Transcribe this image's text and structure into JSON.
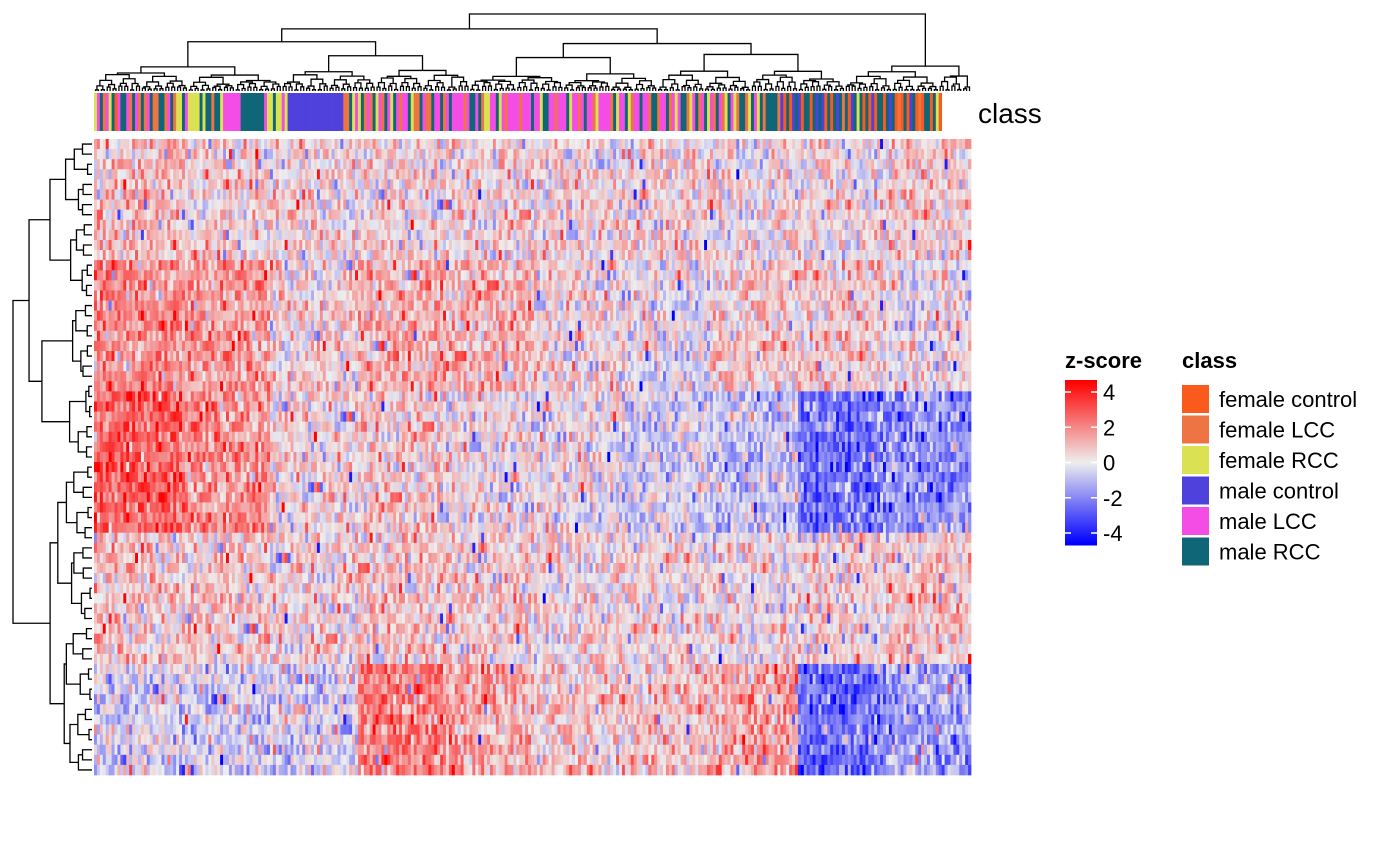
{
  "chart_data": {
    "type": "heatmap",
    "n_rows": 63,
    "n_cols": 299,
    "annotation_label": "class",
    "row_dendrogram": true,
    "column_dendrogram": true,
    "column_annotation": [
      "female RCC",
      "male LCC",
      "male RCC",
      "female LCC",
      "male LCC",
      "female RCC",
      "male RCC",
      "female control",
      "male LCC",
      "male RCC",
      "male RCC",
      "male LCC",
      "female LCC",
      "male RCC",
      "male LCC",
      "female LCC",
      "male RCC",
      "female LCC",
      "male LCC",
      "male RCC",
      "female LCC",
      "female LCC",
      "male RCC",
      "male RCC",
      "female LCC",
      "male LCC",
      "male RCC",
      "female LCC",
      "female RCC",
      "female RCC",
      "male RCC",
      "male LCC",
      "female RCC",
      "female RCC",
      "female RCC",
      "female RCC",
      "male RCC",
      "female RCC",
      "male RCC",
      "male RCC",
      "female LCC",
      "male RCC",
      "male RCC",
      "female RCC",
      "male LCC",
      "male LCC",
      "male LCC",
      "male LCC",
      "male LCC",
      "male LCC",
      "male RCC",
      "male RCC",
      "male RCC",
      "male RCC",
      "male RCC",
      "male RCC",
      "male RCC",
      "male RCC",
      "male LCC",
      "female RCC",
      "female RCC",
      "male RCC",
      "female RCC",
      "female RCC",
      "male LCC",
      "female RCC",
      "male control",
      "male control",
      "male control",
      "male control",
      "male control",
      "male control",
      "male control",
      "male control",
      "male control",
      "male control",
      "male control",
      "male control",
      "male control",
      "male control",
      "male control",
      "male control",
      "male control",
      "male control",
      "male control",
      "female LCC",
      "female LCC",
      "male RCC",
      "female RCC",
      "male LCC",
      "female RCC",
      "male RCC",
      "female LCC",
      "male LCC",
      "female LCC",
      "male RCC",
      "female RCC",
      "male LCC",
      "female LCC",
      "male RCC",
      "male LCC",
      "female RCC",
      "male RCC",
      "male LCC",
      "female LCC",
      "male LCC",
      "male LCC",
      "male RCC",
      "female RCC",
      "female LCC",
      "female LCC",
      "male RCC",
      "male LCC",
      "female LCC",
      "female LCC",
      "male RCC",
      "male LCC",
      "male LCC",
      "male RCC",
      "female LCC",
      "male LCC",
      "male RCC",
      "male LCC",
      "male LCC",
      "male LCC",
      "male LCC",
      "female LCC",
      "male LCC",
      "male RCC",
      "male RCC",
      "male LCC",
      "male RCC",
      "female LCC",
      "female RCC",
      "female RCC",
      "male LCC",
      "male LCC",
      "male RCC",
      "female RCC",
      "male LCC",
      "female LCC",
      "male LCC",
      "male LCC",
      "male LCC",
      "male LCC",
      "female LCC",
      "male LCC",
      "male LCC",
      "male LCC",
      "male RCC",
      "male LCC",
      "male LCC",
      "female RCC",
      "male RCC",
      "male RCC",
      "male LCC",
      "male LCC",
      "female LCC",
      "male LCC",
      "male LCC",
      "male LCC",
      "male RCC",
      "female RCC",
      "male LCC",
      "male LCC",
      "female LCC",
      "male LCC",
      "male RCC",
      "male LCC",
      "male LCC",
      "female LCC",
      "female RCC",
      "male LCC",
      "male LCC",
      "male LCC",
      "male LCC",
      "female LCC",
      "male RCC",
      "female RCC",
      "male LCC",
      "male LCC",
      "male RCC",
      "female RCC",
      "female LCC",
      "male LCC",
      "male LCC",
      "male RCC",
      "male LCC",
      "male LCC",
      "female LCC",
      "male RCC",
      "male RCC",
      "female LCC",
      "male LCC",
      "male LCC",
      "male RCC",
      "female LCC",
      "male LCC",
      "female RCC",
      "male LCC",
      "male RCC",
      "male RCC",
      "female LCC",
      "female RCC",
      "male LCC",
      "male RCC",
      "female LCC",
      "male LCC",
      "male RCC",
      "female RCC",
      "male LCC",
      "female LCC",
      "male RCC",
      "male LCC",
      "female LCC",
      "female RCC",
      "male RCC",
      "male LCC",
      "female RCC",
      "female LCC",
      "male RCC",
      "male RCC",
      "female LCC",
      "female RCC",
      "male RCC",
      "male LCC",
      "female RCC",
      "male RCC",
      "female LCC",
      "male RCC",
      "male RCC",
      "male RCC",
      "male RCC",
      "female LCC",
      "male control",
      "female control",
      "male RCC",
      "female control",
      "male control",
      "male RCC",
      "male control",
      "female control",
      "male RCC",
      "male RCC",
      "female control",
      "male RCC",
      "male control",
      "male RCC",
      "male control",
      "female control",
      "male RCC",
      "female control",
      "male RCC",
      "male control",
      "male RCC",
      "female LCC",
      "male RCC",
      "female control",
      "male control",
      "male RCC",
      "female RCC",
      "male RCC",
      "female control",
      "male RCC",
      "female control",
      "male control",
      "female control",
      "male RCC",
      "male RCC",
      "female control",
      "male RCC",
      "male control",
      "male RCC",
      "female control",
      "female LCC",
      "female control",
      "male RCC",
      "female control",
      "male control",
      "male RCC",
      "female control",
      "female LCC",
      "female control",
      "male RCC",
      "male RCC",
      "female control",
      "male RCC",
      "female RCC",
      "female control"
    ],
    "row_block_boundaries": [
      0,
      12,
      25,
      39,
      52,
      63
    ],
    "column_block_boundaries": [
      0,
      30,
      60,
      90,
      120,
      150,
      180,
      210,
      240,
      270,
      299
    ],
    "block_mean_z": [
      [
        0.7,
        0.3,
        0.3,
        0.3,
        0.3,
        0.3,
        0.4,
        0.3,
        0.3,
        0.6
      ],
      [
        1.6,
        1.3,
        0.4,
        1.1,
        0.9,
        0.3,
        0.0,
        0.6,
        0.6,
        0.0
      ],
      [
        2.3,
        1.6,
        0.3,
        0.5,
        0.1,
        0.1,
        -0.3,
        -0.6,
        -2.0,
        -1.6
      ],
      [
        0.6,
        0.6,
        0.3,
        0.6,
        0.5,
        0.4,
        0.3,
        0.2,
        0.3,
        0.6
      ],
      [
        -0.3,
        -0.4,
        -0.4,
        1.9,
        1.2,
        0.6,
        0.7,
        1.2,
        -2.2,
        -1.3
      ]
    ],
    "legend": {
      "heat": {
        "title": "z-score",
        "ticks": [
          4,
          2,
          0,
          -2,
          -4
        ],
        "range": [
          -4,
          4
        ],
        "colors": {
          "low": "#0000FF",
          "mid": "#EEEEEE",
          "high": "#FF0000"
        }
      },
      "class": {
        "title": "class",
        "entries": [
          {
            "label": "female control",
            "color": "#FA5B1D"
          },
          {
            "label": "female LCC",
            "color": "#EE7443"
          },
          {
            "label": "female RCC",
            "color": "#DAE253"
          },
          {
            "label": "male control",
            "color": "#4F41DB"
          },
          {
            "label": "male LCC",
            "color": "#F44DE6"
          },
          {
            "label": "male RCC",
            "color": "#0E6677"
          }
        ]
      }
    }
  }
}
